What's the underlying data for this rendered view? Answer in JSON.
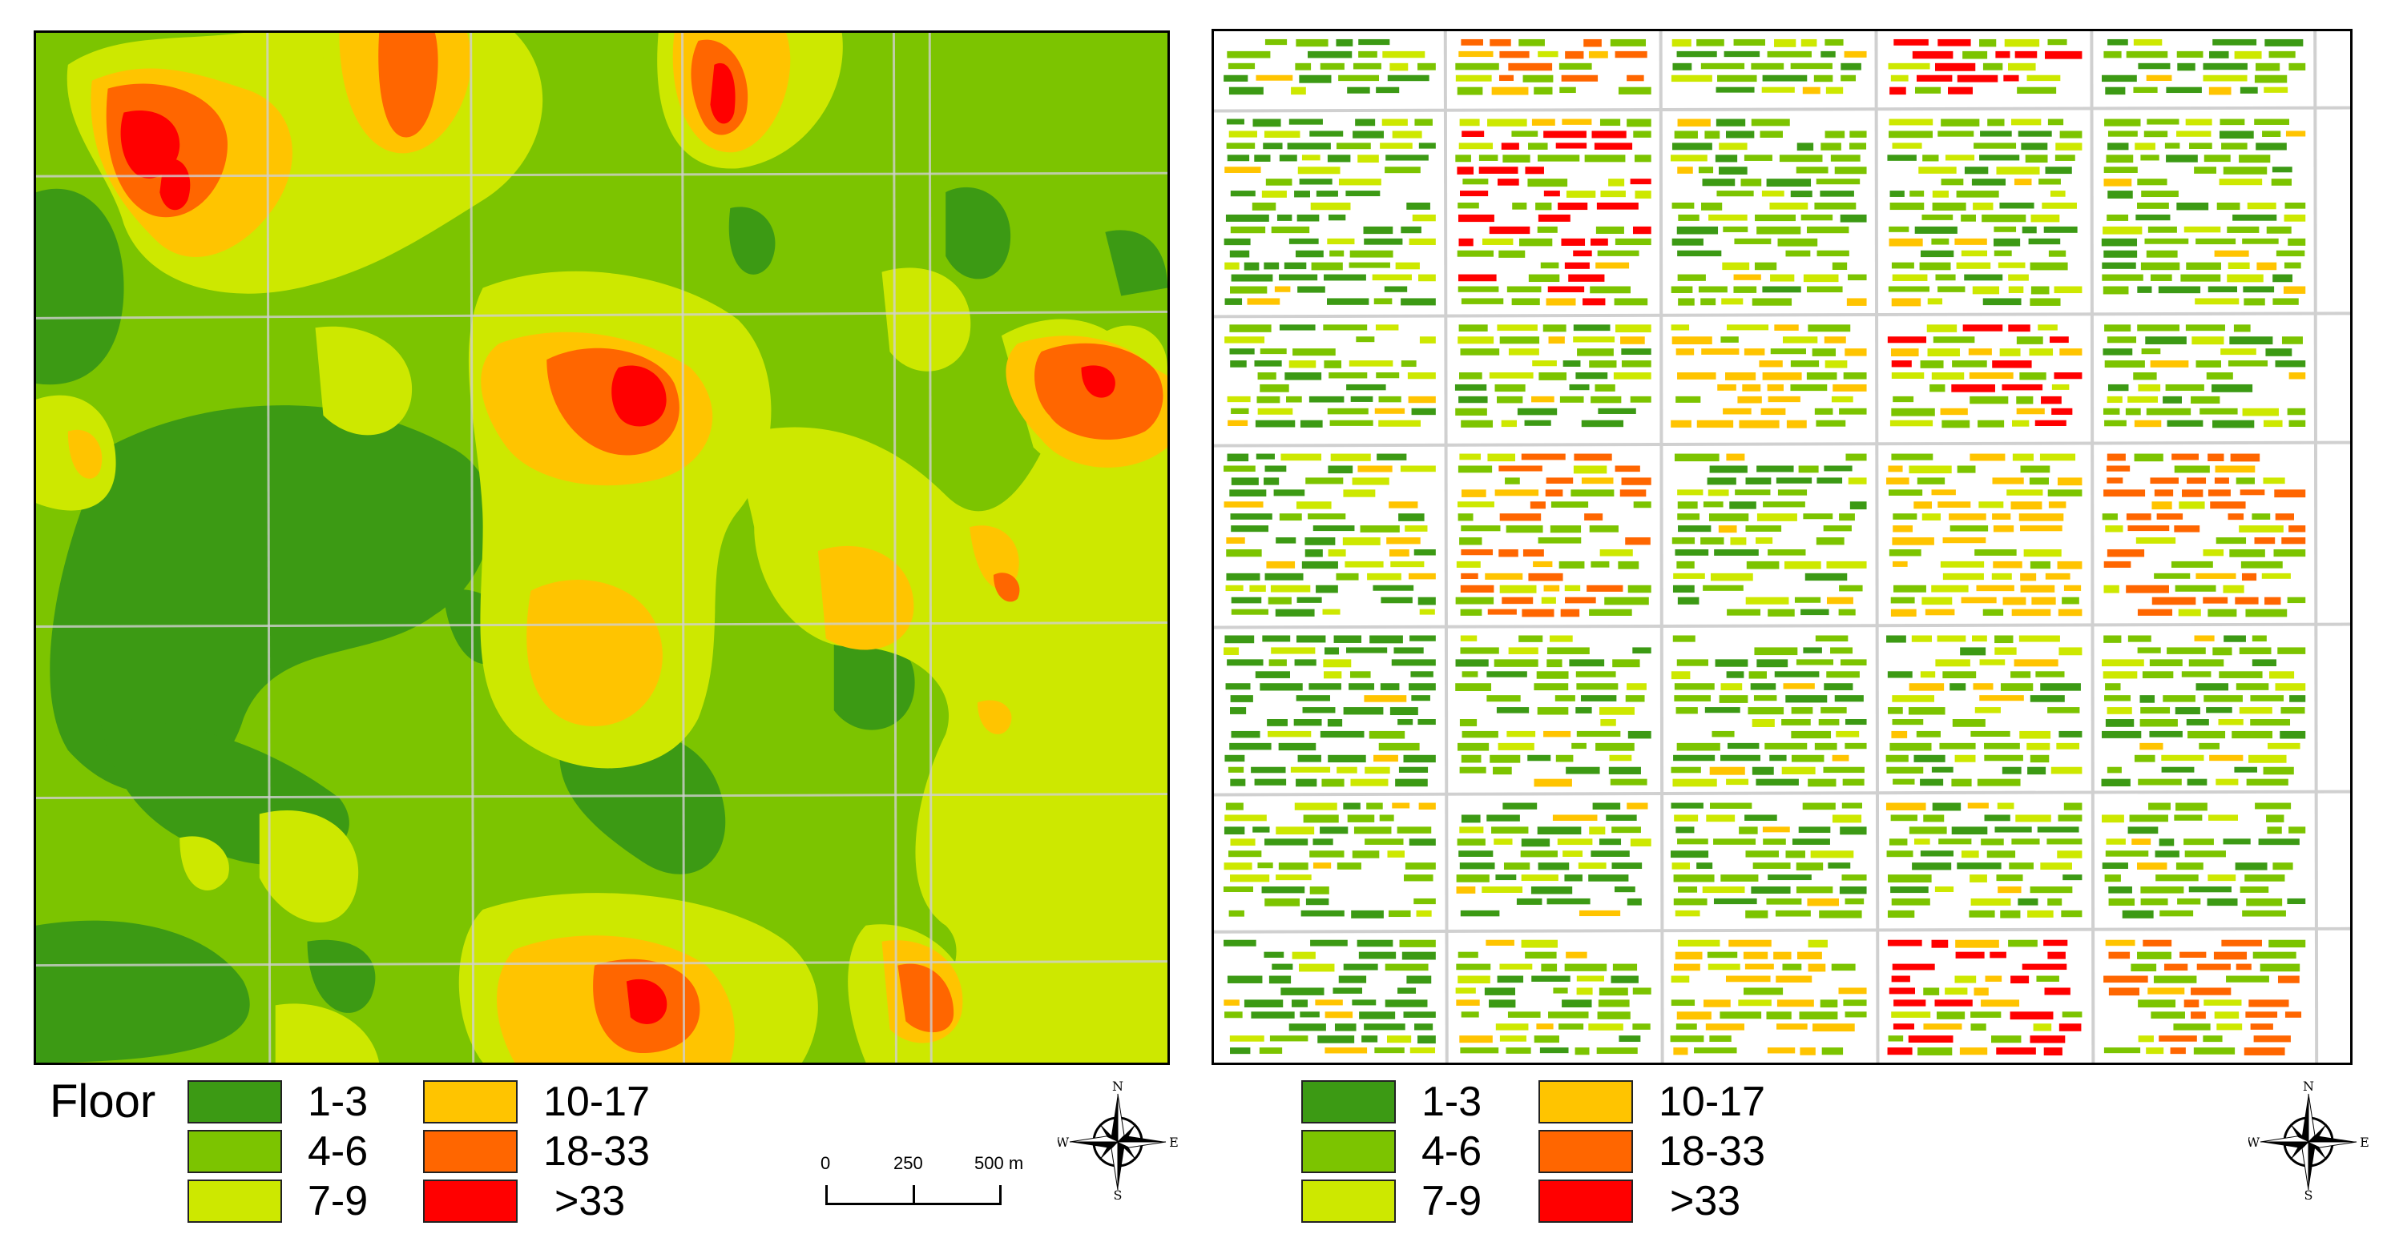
{
  "legend": {
    "title": "Floor",
    "classes": [
      {
        "label": "1-3",
        "color": "#3c9a14"
      },
      {
        "label": "4-6",
        "color": "#7cc400"
      },
      {
        "label": "7-9",
        "color": "#cde800"
      },
      {
        "label": "10-17",
        "color": "#ffc400"
      },
      {
        "label": "18-33",
        "color": "#ff6600"
      },
      {
        "label": ">33",
        "color": "#ff0000"
      }
    ]
  },
  "scale_bar": {
    "labels": [
      "0",
      "250",
      "500 m"
    ]
  },
  "compass": {
    "n": "N",
    "e": "E",
    "s": "S",
    "w": "W"
  },
  "colors": {
    "road": "#d0d0d0",
    "frame": "#000000"
  }
}
